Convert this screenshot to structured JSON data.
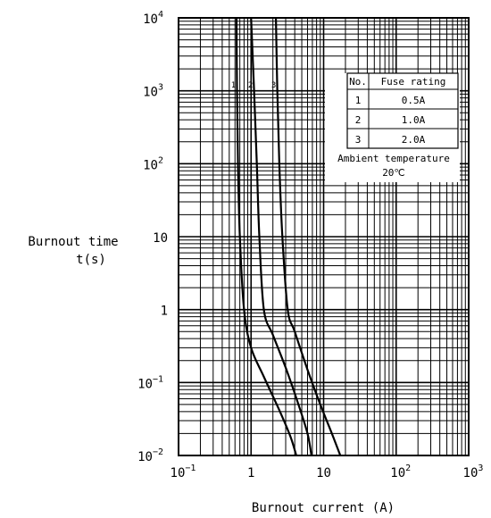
{
  "chart_data": {
    "type": "line",
    "title": "",
    "xlabel": "Burnout current (A)",
    "ylabel_line1": "Burnout time",
    "ylabel_line2": "t(s)",
    "x_scale": "log",
    "y_scale": "log",
    "xlim": [
      0.1,
      1000
    ],
    "ylim": [
      0.01,
      10000
    ],
    "grid": true,
    "x_ticks": [
      {
        "base": "10",
        "exp": "−1",
        "value": 0.1
      },
      {
        "base": "1",
        "exp": "",
        "value": 1
      },
      {
        "base": "10",
        "exp": "",
        "value": 10
      },
      {
        "base": "10",
        "exp": "2",
        "value": 100
      },
      {
        "base": "10",
        "exp": "3",
        "value": 1000
      }
    ],
    "y_ticks": [
      {
        "base": "10",
        "exp": "−2",
        "value": 0.01
      },
      {
        "base": "10",
        "exp": "−1",
        "value": 0.1
      },
      {
        "base": "1",
        "exp": "",
        "value": 1
      },
      {
        "base": "10",
        "exp": "",
        "value": 10
      },
      {
        "base": "10",
        "exp": "2",
        "value": 100
      },
      {
        "base": "10",
        "exp": "3",
        "value": 1000
      },
      {
        "base": "10",
        "exp": "4",
        "value": 10000
      }
    ],
    "series": [
      {
        "name": "1",
        "x": [
          0.63,
          0.64,
          0.66,
          0.7,
          0.8,
          1.0,
          1.5,
          2.5,
          3.5,
          4.2
        ],
        "y": [
          10000,
          1000,
          100,
          10,
          1,
          0.3,
          0.12,
          0.04,
          0.018,
          0.01
        ]
      },
      {
        "name": "2",
        "x": [
          1.0,
          1.1,
          1.2,
          1.3,
          1.5,
          2.0,
          3.0,
          4.5,
          6.0,
          6.8
        ],
        "y": [
          10000,
          1000,
          100,
          10,
          1,
          0.45,
          0.16,
          0.05,
          0.02,
          0.01
        ]
      },
      {
        "name": "3",
        "x": [
          2.2,
          2.3,
          2.45,
          2.7,
          3.2,
          4.0,
          6.0,
          9.0,
          13.0,
          17.0
        ],
        "y": [
          10000,
          1000,
          100,
          10,
          1,
          0.5,
          0.15,
          0.05,
          0.02,
          0.01
        ]
      }
    ],
    "table": {
      "headers": [
        "No.",
        "Fuse rating"
      ],
      "rows": [
        [
          "1",
          "0.5A"
        ],
        [
          "2",
          "1.0A"
        ],
        [
          "3",
          "2.0A"
        ]
      ],
      "note_line1": "Ambient temperature",
      "note_line2": "20℃"
    }
  }
}
